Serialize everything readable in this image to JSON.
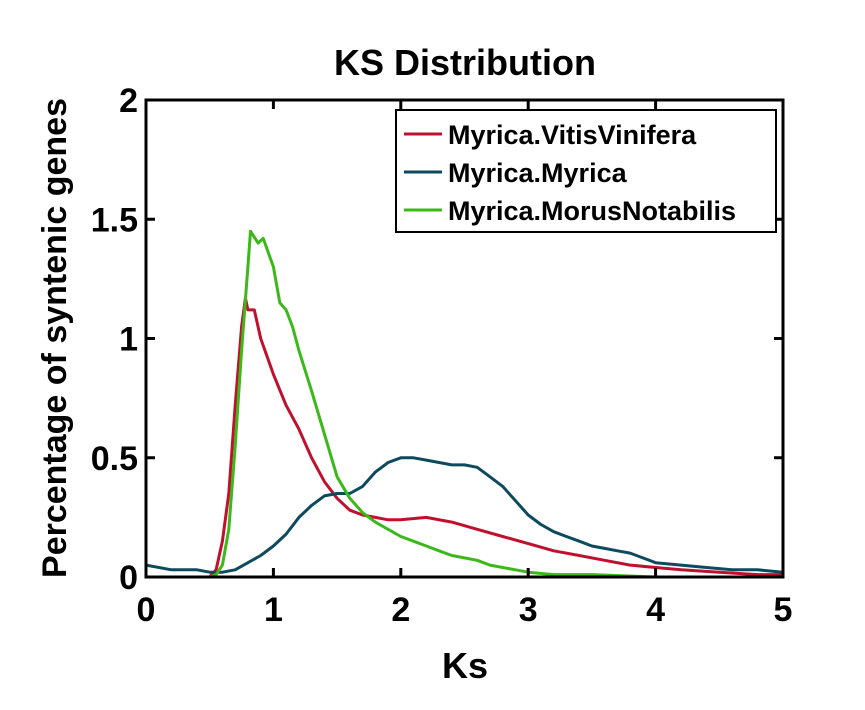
{
  "chart_data": {
    "type": "line",
    "title": "KS Distribution",
    "xlabel": "Ks",
    "ylabel": "Percentage of syntenic genes",
    "xlim": [
      0,
      5
    ],
    "ylim": [
      0,
      2
    ],
    "xticks": [
      "0",
      "1",
      "2",
      "3",
      "4",
      "5"
    ],
    "yticks": [
      "0",
      "0.5",
      "1",
      "1.5",
      "2"
    ],
    "grid": false,
    "legend_position": "top-right",
    "series": [
      {
        "name": "Myrica.VitisVinifera",
        "color": "#c0102e",
        "points": [
          [
            0.5,
            0.0
          ],
          [
            0.55,
            0.03
          ],
          [
            0.6,
            0.15
          ],
          [
            0.65,
            0.35
          ],
          [
            0.7,
            0.72
          ],
          [
            0.75,
            1.05
          ],
          [
            0.78,
            1.17
          ],
          [
            0.8,
            1.12
          ],
          [
            0.85,
            1.12
          ],
          [
            0.9,
            1.0
          ],
          [
            1.0,
            0.85
          ],
          [
            1.1,
            0.72
          ],
          [
            1.2,
            0.62
          ],
          [
            1.3,
            0.5
          ],
          [
            1.4,
            0.4
          ],
          [
            1.5,
            0.33
          ],
          [
            1.6,
            0.28
          ],
          [
            1.7,
            0.26
          ],
          [
            1.8,
            0.25
          ],
          [
            1.9,
            0.24
          ],
          [
            2.0,
            0.24
          ],
          [
            2.2,
            0.25
          ],
          [
            2.4,
            0.23
          ],
          [
            2.6,
            0.2
          ],
          [
            2.8,
            0.17
          ],
          [
            3.0,
            0.14
          ],
          [
            3.2,
            0.11
          ],
          [
            3.4,
            0.09
          ],
          [
            3.6,
            0.07
          ],
          [
            3.8,
            0.05
          ],
          [
            4.0,
            0.04
          ],
          [
            4.2,
            0.03
          ],
          [
            4.5,
            0.02
          ],
          [
            4.8,
            0.01
          ],
          [
            5.0,
            0.01
          ]
        ]
      },
      {
        "name": "Myrica.Myrica",
        "color": "#0d4a5e",
        "points": [
          [
            0.0,
            0.05
          ],
          [
            0.2,
            0.03
          ],
          [
            0.4,
            0.03
          ],
          [
            0.5,
            0.02
          ],
          [
            0.6,
            0.02
          ],
          [
            0.7,
            0.03
          ],
          [
            0.8,
            0.06
          ],
          [
            0.9,
            0.09
          ],
          [
            1.0,
            0.13
          ],
          [
            1.1,
            0.18
          ],
          [
            1.2,
            0.25
          ],
          [
            1.3,
            0.3
          ],
          [
            1.4,
            0.34
          ],
          [
            1.5,
            0.35
          ],
          [
            1.6,
            0.35
          ],
          [
            1.7,
            0.38
          ],
          [
            1.8,
            0.44
          ],
          [
            1.9,
            0.48
          ],
          [
            2.0,
            0.5
          ],
          [
            2.1,
            0.5
          ],
          [
            2.2,
            0.49
          ],
          [
            2.3,
            0.48
          ],
          [
            2.4,
            0.47
          ],
          [
            2.5,
            0.47
          ],
          [
            2.6,
            0.46
          ],
          [
            2.7,
            0.42
          ],
          [
            2.8,
            0.38
          ],
          [
            2.9,
            0.32
          ],
          [
            3.0,
            0.26
          ],
          [
            3.1,
            0.22
          ],
          [
            3.2,
            0.19
          ],
          [
            3.3,
            0.17
          ],
          [
            3.4,
            0.15
          ],
          [
            3.5,
            0.13
          ],
          [
            3.6,
            0.12
          ],
          [
            3.7,
            0.11
          ],
          [
            3.8,
            0.1
          ],
          [
            3.9,
            0.08
          ],
          [
            4.0,
            0.06
          ],
          [
            4.2,
            0.05
          ],
          [
            4.4,
            0.04
          ],
          [
            4.6,
            0.03
          ],
          [
            4.8,
            0.03
          ],
          [
            5.0,
            0.02
          ]
        ]
      },
      {
        "name": "Myrica.MorusNotabilis",
        "color": "#3cb81a",
        "points": [
          [
            0.5,
            0.0
          ],
          [
            0.55,
            0.01
          ],
          [
            0.6,
            0.05
          ],
          [
            0.65,
            0.2
          ],
          [
            0.7,
            0.55
          ],
          [
            0.75,
            0.95
          ],
          [
            0.8,
            1.3
          ],
          [
            0.82,
            1.45
          ],
          [
            0.88,
            1.4
          ],
          [
            0.92,
            1.42
          ],
          [
            1.0,
            1.3
          ],
          [
            1.05,
            1.15
          ],
          [
            1.1,
            1.12
          ],
          [
            1.15,
            1.05
          ],
          [
            1.2,
            0.95
          ],
          [
            1.3,
            0.78
          ],
          [
            1.4,
            0.6
          ],
          [
            1.5,
            0.42
          ],
          [
            1.6,
            0.33
          ],
          [
            1.7,
            0.27
          ],
          [
            1.8,
            0.23
          ],
          [
            1.9,
            0.2
          ],
          [
            2.0,
            0.17
          ],
          [
            2.1,
            0.15
          ],
          [
            2.2,
            0.13
          ],
          [
            2.3,
            0.11
          ],
          [
            2.4,
            0.09
          ],
          [
            2.5,
            0.08
          ],
          [
            2.6,
            0.07
          ],
          [
            2.7,
            0.05
          ],
          [
            2.8,
            0.04
          ],
          [
            2.9,
            0.03
          ],
          [
            3.0,
            0.02
          ],
          [
            3.2,
            0.01
          ],
          [
            3.5,
            0.01
          ],
          [
            4.0,
            0.0
          ],
          [
            4.5,
            0.0
          ],
          [
            5.0,
            0.0
          ]
        ]
      }
    ]
  }
}
